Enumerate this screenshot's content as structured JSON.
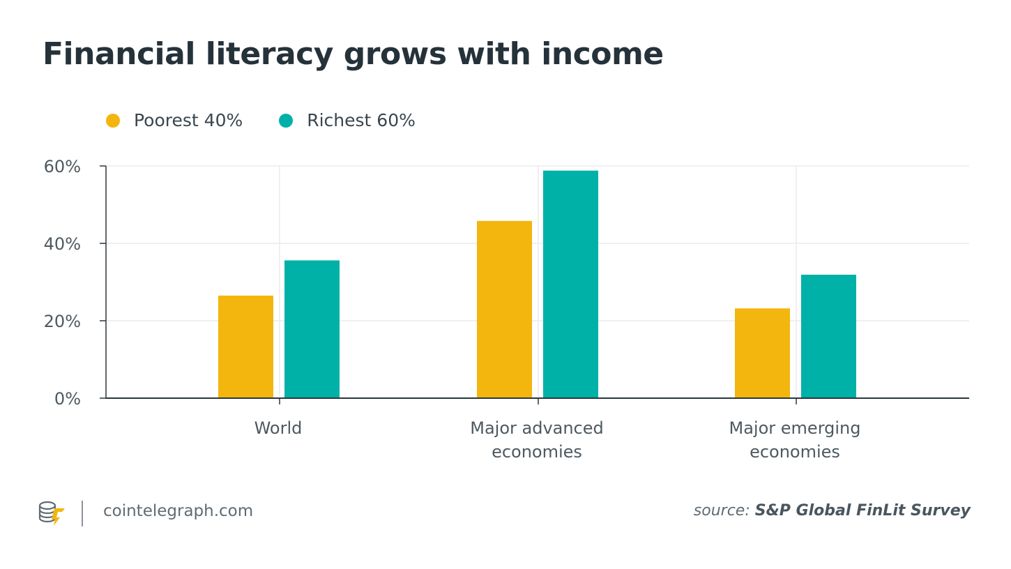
{
  "title": "Financial literacy grows with income",
  "colors": {
    "poorest": "#F3B60E",
    "richest": "#00B1A8",
    "grid": "#ECECEC",
    "axis": "#2A363E",
    "tick_text": "#4D5960"
  },
  "chart_data": {
    "type": "bar",
    "title": "Financial literacy grows with income",
    "categories": [
      [
        "World"
      ],
      [
        "Major advanced",
        "economies"
      ],
      [
        "Major emerging",
        "economies"
      ]
    ],
    "series": [
      {
        "name": "Poorest 40%",
        "color": "#F3B60E",
        "values": [
          26.5,
          45.8,
          23.2
        ]
      },
      {
        "name": "Richest 60%",
        "color": "#00B1A8",
        "values": [
          35.6,
          58.8,
          31.9
        ]
      }
    ],
    "y_ticks": [
      0,
      20,
      40,
      60
    ],
    "y_tick_labels": [
      "0%",
      "20%",
      "40%",
      "60%"
    ],
    "ylim": [
      0,
      60
    ],
    "grid": true,
    "legend_position": "top-left"
  },
  "footer": {
    "site": "cointelegraph.com",
    "source_prefix": "source:",
    "source_name": "S&P Global FinLit Survey"
  }
}
